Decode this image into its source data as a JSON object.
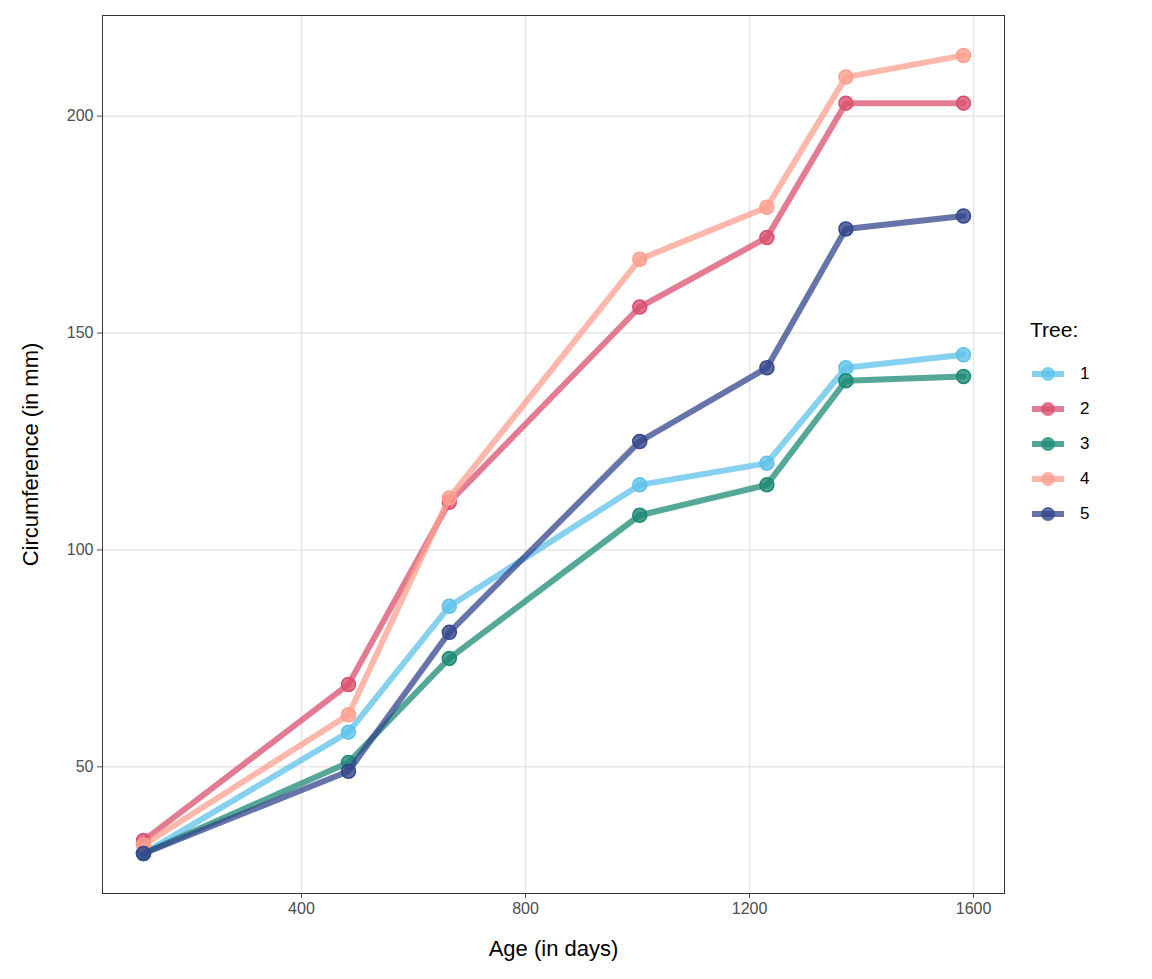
{
  "chart_data": {
    "type": "line",
    "x_label": "Age (in days)",
    "y_label": "Circumference (in mm)",
    "legend_title": "Tree:",
    "x": [
      118,
      484,
      664,
      1004,
      1231,
      1372,
      1582
    ],
    "series": [
      {
        "name": "1",
        "color": "#5EC2EA",
        "values": [
          30,
          58,
          87,
          115,
          120,
          142,
          145
        ]
      },
      {
        "name": "2",
        "color": "#D9506F",
        "values": [
          33,
          69,
          111,
          156,
          172,
          203,
          203
        ]
      },
      {
        "name": "3",
        "color": "#1C8A75",
        "values": [
          30,
          51,
          75,
          108,
          115,
          139,
          140
        ]
      },
      {
        "name": "4",
        "color": "#FC9F8F",
        "values": [
          32,
          62,
          112,
          167,
          179,
          209,
          214
        ]
      },
      {
        "name": "5",
        "color": "#34468C",
        "values": [
          30,
          49,
          81,
          125,
          142,
          174,
          177
        ]
      }
    ],
    "xlim": [
      44.8,
      1655.2
    ],
    "ylim": [
      20.8,
      223.2
    ],
    "xticks": [
      400,
      800,
      1200,
      1600
    ],
    "yticks": [
      50,
      100,
      150,
      200
    ],
    "grid": true,
    "marker": "circle",
    "legend": "right"
  }
}
